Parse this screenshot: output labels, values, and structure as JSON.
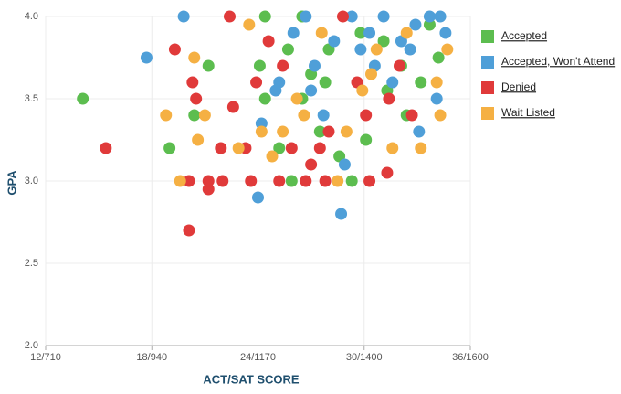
{
  "chart_data": {
    "type": "scatter",
    "xlabel": "ACT/SAT SCORE",
    "ylabel": "GPA",
    "xlim": [
      12,
      36
    ],
    "ylim": [
      2,
      4
    ],
    "xticks": [
      {
        "value": 12,
        "label": "12/710"
      },
      {
        "value": 18,
        "label": "18/940"
      },
      {
        "value": 24,
        "label": "24/1170"
      },
      {
        "value": 30,
        "label": "30/1400"
      },
      {
        "value": 36,
        "label": "36/1600"
      }
    ],
    "yticks": [
      {
        "value": 2,
        "label": "2.0"
      },
      2.5,
      {
        "value": 3,
        "label": "3.0"
      },
      3.5,
      {
        "value": 4,
        "label": "4.0"
      }
    ],
    "grid": true,
    "legend": "right",
    "series": [
      {
        "name": "Accepted",
        "color": "#5cbd4f",
        "x": [
          14.1,
          19,
          20.4,
          21.2,
          24.1,
          24.4,
          25.2,
          25.9,
          26.5,
          27,
          27.5,
          28,
          28.6,
          29.3,
          30.1,
          31.1,
          32.1,
          32.4,
          33.7,
          34.2,
          24.4,
          25.7,
          26.5,
          27.8,
          29.8,
          31.3,
          33.2
        ],
        "values": [
          3.5,
          3.2,
          3.4,
          3.7,
          3.7,
          3.5,
          3.2,
          3.0,
          4.0,
          3.65,
          3.3,
          3.8,
          3.15,
          3.0,
          3.25,
          3.85,
          3.7,
          3.4,
          3.95,
          3.75,
          4.0,
          3.8,
          3.5,
          3.6,
          3.9,
          3.55,
          3.6
        ]
      },
      {
        "name": "Accepted, Won't Attend",
        "color": "#4f9fd8",
        "x": [
          17.7,
          19.8,
          24,
          24.2,
          25.2,
          26,
          26.7,
          27.2,
          27.7,
          28.7,
          28.9,
          29.3,
          29.8,
          30.3,
          30.6,
          31.1,
          31.6,
          32.1,
          32.6,
          33.1,
          33.7,
          34.1,
          34.3,
          34.6,
          28.3,
          27,
          25,
          32.9
        ],
        "values": [
          3.75,
          4.0,
          2.9,
          3.35,
          3.6,
          3.9,
          4.0,
          3.7,
          3.4,
          2.8,
          3.1,
          4.0,
          3.8,
          3.9,
          3.7,
          4.0,
          3.6,
          3.85,
          3.8,
          3.3,
          4.0,
          3.5,
          4.0,
          3.9,
          3.85,
          3.55,
          3.55,
          3.95
        ]
      },
      {
        "name": "Denied",
        "color": "#e03a3a",
        "x": [
          15.4,
          19.3,
          20.1,
          20.1,
          20.3,
          20.5,
          21.2,
          21.2,
          22,
          21.9,
          22.4,
          22.6,
          23.3,
          23.6,
          23.9,
          24.6,
          25.2,
          25.9,
          26.7,
          27,
          27.5,
          27.8,
          28,
          28.8,
          30.1,
          30.3,
          31.3,
          31.4,
          32,
          32.7,
          25.4,
          29.6
        ],
        "values": [
          3.2,
          3.8,
          2.7,
          3.0,
          3.6,
          3.5,
          3.0,
          2.95,
          3.0,
          3.2,
          4.0,
          3.45,
          3.2,
          3.0,
          3.6,
          3.85,
          3.0,
          3.2,
          3.0,
          3.1,
          3.2,
          3.0,
          3.3,
          4.0,
          3.4,
          3.0,
          3.05,
          3.5,
          3.7,
          3.4,
          3.7,
          3.6
        ]
      },
      {
        "name": "Wait Listed",
        "color": "#f5b043",
        "x": [
          18.8,
          19.6,
          20.4,
          20.6,
          21,
          22.9,
          23.5,
          24.8,
          25.4,
          26.2,
          26.6,
          27.6,
          28.5,
          29,
          29.9,
          30.7,
          31.6,
          32.4,
          33.2,
          34.1,
          34.3,
          34.7,
          30.4,
          24.2
        ],
        "values": [
          3.4,
          3.0,
          3.75,
          3.25,
          3.4,
          3.2,
          3.95,
          3.15,
          3.3,
          3.5,
          3.4,
          3.9,
          3.0,
          3.3,
          3.55,
          3.8,
          3.2,
          3.9,
          3.2,
          3.6,
          3.4,
          3.8,
          3.65,
          3.3
        ]
      }
    ]
  }
}
